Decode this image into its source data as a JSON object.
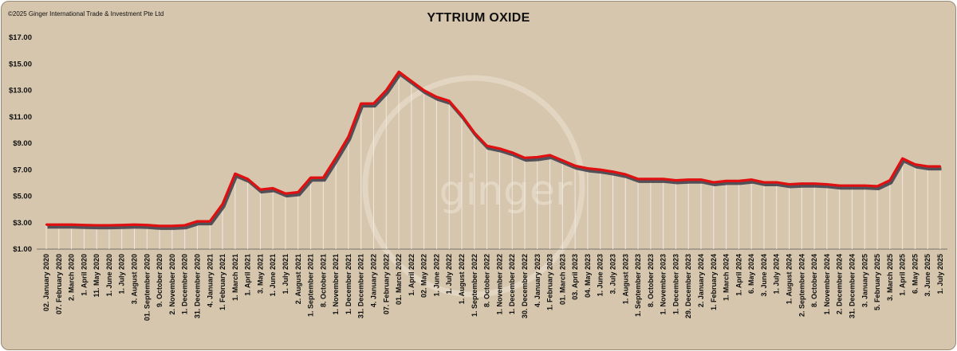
{
  "header": {
    "copyright": "©2025 Ginger International Trade & Investment Pte Ltd",
    "watermark": "ginger"
  },
  "chart_data": {
    "type": "line",
    "title": "YTTRIUM OXIDE",
    "xlabel": "",
    "ylabel": "",
    "ylim": [
      1,
      17
    ],
    "yticks": [
      "$1.00",
      "$3.00",
      "$5.00",
      "$7.00",
      "$9.00",
      "$11.00",
      "$13.00",
      "$15.00",
      "$17.00"
    ],
    "colors": {
      "line": "#e01010",
      "shadow": "#3a3a48",
      "drop_lines": "#f2ede4",
      "background": "#d6c6ad"
    },
    "categories": [
      "02. January 2020",
      "07. February 2020",
      "2. March 2020",
      "1. April 2020",
      "11. May 2020",
      "1. June 2020",
      "1. July 2020",
      "3. August 2020",
      "01. September 2020",
      "9. October 2020",
      "2. November 2020",
      "1. December 2020",
      "31. December 2020",
      "4. January 2021",
      "1. February 2021",
      "1. March 2021",
      "1. April 2021",
      "3. May 2021",
      "1. June 2021",
      "1. July 2021",
      "2. August 2021",
      "1. September 2021",
      "8. October 2021",
      "1. November 2021",
      "1. December 2021",
      "31. December 2021",
      "4. January 2022",
      "07. February 2022",
      "01. March 2022",
      "1. April 2022",
      "02. May 2022",
      "1. June 2022",
      "1. July 2022",
      "1. August 2022",
      "1. September 2022",
      "8. October 2022",
      "1. November 2022",
      "1. December 2022",
      "30. December 2022",
      "4. January 2023",
      "1. February 2023",
      "01. March 2023",
      "03. April 2023",
      "04. May 2023",
      "1. June 2023",
      "3. July 2023",
      "1. August 2023",
      "1. September 2023",
      "8. October 2023",
      "1. November 2023",
      "1. December 2023",
      "29. December 2023",
      "2. January 2024",
      "1. February 2024",
      "1. March 2024",
      "1. April 2024",
      "6. May 2024",
      "3. June 2024",
      "1. July 2024",
      "1. August 2024",
      "2. September 2024",
      "8. October 2024",
      "1. November 2024",
      "2. December 2024",
      "31. December 2024",
      "3. January 2025",
      "5. February 2025",
      "3. March 2025",
      "1. April 2025",
      "6. May 2025",
      "3. June 2025",
      "1. July 2025"
    ],
    "series": [
      {
        "values": [
          2.85,
          2.85,
          2.85,
          2.82,
          2.8,
          2.8,
          2.82,
          2.85,
          2.82,
          2.75,
          2.75,
          2.8,
          3.1,
          3.1,
          4.4,
          6.7,
          6.3,
          5.5,
          5.6,
          5.2,
          5.3,
          6.4,
          6.4,
          7.9,
          9.5,
          12.0,
          12.0,
          13.0,
          14.4,
          13.7,
          13.0,
          12.5,
          12.2,
          11.1,
          9.8,
          8.8,
          8.6,
          8.3,
          7.9,
          7.95,
          8.1,
          7.7,
          7.3,
          7.1,
          7.0,
          6.85,
          6.65,
          6.3,
          6.3,
          6.3,
          6.2,
          6.25,
          6.25,
          6.05,
          6.15,
          6.15,
          6.25,
          6.05,
          6.05,
          5.9,
          5.95,
          5.95,
          5.9,
          5.8,
          5.8,
          5.8,
          5.75,
          6.2,
          7.85,
          7.4,
          7.25,
          7.25
        ]
      }
    ]
  }
}
